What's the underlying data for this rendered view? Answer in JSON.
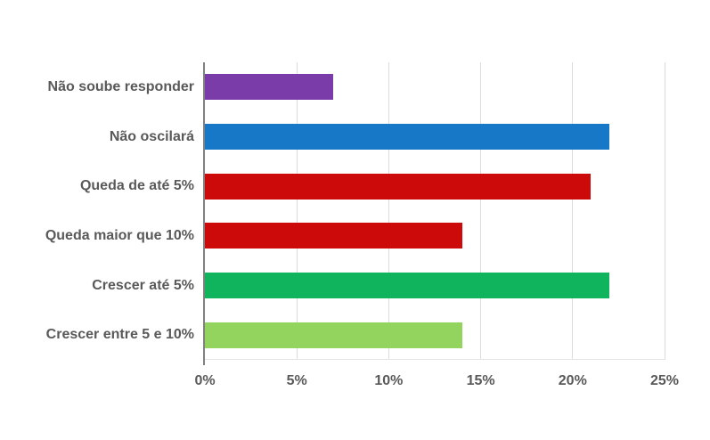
{
  "chart_data": {
    "type": "bar",
    "orientation": "horizontal",
    "title": "",
    "categories": [
      "Não soube responder",
      "Não oscilará",
      "Queda de até 5%",
      "Queda maior que 10%",
      "Crescer até 5%",
      "Crescer entre 5 e 10%"
    ],
    "values": [
      7,
      22,
      21,
      14,
      22,
      14
    ],
    "value_unit": "%",
    "bar_colors": [
      "#7A3CA8",
      "#1678C6",
      "#CD0A0A",
      "#CD0A0A",
      "#0FB45C",
      "#92D45E"
    ],
    "x_ticks": [
      "0%",
      "5%",
      "10%",
      "15%",
      "20%",
      "25%"
    ],
    "x_tick_values": [
      0,
      5,
      10,
      15,
      20,
      25
    ],
    "xlim": [
      0,
      25
    ],
    "xlabel": "",
    "ylabel": "",
    "grid": "vertical-only",
    "legend": "none",
    "colors": {
      "axis_line": "#808080",
      "gridline": "#DCDCDC",
      "baseline": "#E4E4E4",
      "text": "#595959",
      "background": "#FFFFFF"
    }
  }
}
